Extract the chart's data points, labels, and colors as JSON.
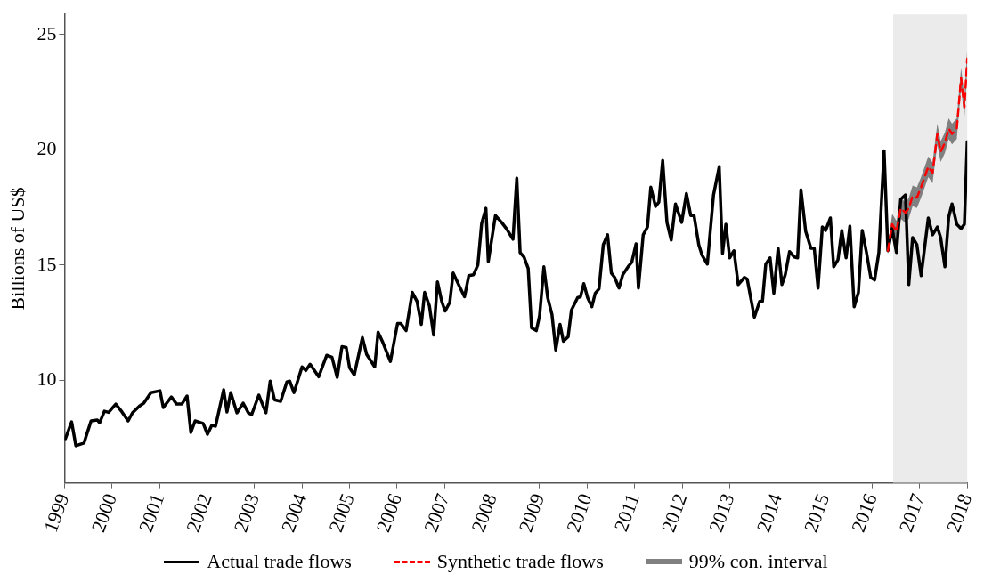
{
  "chart_data": {
    "type": "line",
    "ylabel": "Billions of US$",
    "legend": "bottom",
    "annotations": [
      "99% con. interval"
    ],
    "xlim": [
      1999,
      2018
    ],
    "xticks": [
      1999,
      2000,
      2001,
      2002,
      2003,
      2004,
      2005,
      2006,
      2007,
      2008,
      2009,
      2010,
      2011,
      2012,
      2013,
      2014,
      2015,
      2016,
      2017,
      2018
    ],
    "ylim": [
      5.54,
      25.88
    ],
    "yticks": [
      10,
      15,
      20,
      25
    ],
    "bands": [
      {
        "axis": "x",
        "from": 2016.44,
        "to": 2018,
        "color": "#ebebeb"
      }
    ],
    "x": [
      1999.02,
      1999.15,
      1999.24,
      1999.41,
      1999.56,
      1999.69,
      1999.74,
      1999.84,
      1999.93,
      2000.08,
      2000.21,
      2000.34,
      2000.43,
      2000.58,
      2000.67,
      2000.82,
      2001.01,
      2001.08,
      2001.25,
      2001.36,
      2001.47,
      2001.58,
      2001.66,
      2001.75,
      2001.92,
      2002.01,
      2002.1,
      2002.18,
      2002.35,
      2002.42,
      2002.5,
      2002.63,
      2002.76,
      2002.87,
      2002.94,
      2003.09,
      2003.24,
      2003.33,
      2003.42,
      2003.55,
      2003.68,
      2003.74,
      2003.83,
      2004.0,
      2004.08,
      2004.17,
      2004.35,
      2004.52,
      2004.63,
      2004.74,
      2004.84,
      2004.93,
      2005.0,
      2005.1,
      2005.27,
      2005.36,
      2005.53,
      2005.6,
      2005.69,
      2005.86,
      2006.01,
      2006.08,
      2006.19,
      2006.32,
      2006.42,
      2006.51,
      2006.58,
      2006.68,
      2006.77,
      2006.85,
      2006.94,
      2007.01,
      2007.11,
      2007.18,
      2007.31,
      2007.42,
      2007.51,
      2007.61,
      2007.7,
      2007.78,
      2007.87,
      2007.92,
      2008.07,
      2008.2,
      2008.3,
      2008.44,
      2008.52,
      2008.59,
      2008.67,
      2008.76,
      2008.83,
      2008.93,
      2009.0,
      2009.09,
      2009.17,
      2009.26,
      2009.34,
      2009.43,
      2009.5,
      2009.6,
      2009.67,
      2009.8,
      2009.86,
      2009.93,
      2010.01,
      2010.1,
      2010.17,
      2010.25,
      2010.34,
      2010.43,
      2010.51,
      2010.58,
      2010.67,
      2010.75,
      2010.86,
      2010.94,
      2011.03,
      2011.08,
      2011.18,
      2011.27,
      2011.34,
      2011.44,
      2011.51,
      2011.59,
      2011.68,
      2011.77,
      2011.86,
      2011.99,
      2012.09,
      2012.18,
      2012.25,
      2012.35,
      2012.42,
      2012.53,
      2012.66,
      2012.78,
      2012.85,
      2012.92,
      2013.0,
      2013.09,
      2013.18,
      2013.31,
      2013.37,
      2013.52,
      2013.63,
      2013.69,
      2013.76,
      2013.85,
      2013.93,
      2014.02,
      2014.1,
      2014.17,
      2014.26,
      2014.36,
      2014.43,
      2014.5,
      2014.6,
      2014.71,
      2014.78,
      2014.86,
      2014.95,
      2015.02,
      2015.12,
      2015.19,
      2015.28,
      2015.36,
      2015.45,
      2015.53,
      2015.62,
      2015.71,
      2015.79,
      2015.88,
      2015.97,
      2016.05,
      2016.14,
      2016.25,
      2016.33,
      2016.42,
      2016.51,
      2016.6,
      2016.7,
      2016.77,
      2016.85,
      2016.94,
      2017.03,
      2017.18,
      2017.27,
      2017.37,
      2017.44,
      2017.53,
      2017.61,
      2017.68,
      2017.78,
      2017.87,
      2017.94,
      2018.0
    ],
    "series": [
      {
        "name": "Actual trade flows",
        "color": "#000000",
        "values": [
          7.46,
          8.19,
          7.15,
          7.27,
          8.23,
          8.27,
          8.15,
          8.65,
          8.6,
          8.96,
          8.62,
          8.23,
          8.58,
          8.88,
          9.0,
          9.46,
          9.54,
          8.81,
          9.27,
          8.96,
          8.96,
          9.31,
          7.73,
          8.23,
          8.12,
          7.65,
          8.04,
          8.0,
          9.58,
          8.62,
          9.46,
          8.58,
          9.0,
          8.58,
          8.5,
          9.35,
          8.58,
          9.96,
          9.15,
          9.08,
          9.92,
          9.96,
          9.46,
          10.58,
          10.42,
          10.69,
          10.15,
          11.08,
          11.0,
          10.12,
          11.46,
          11.42,
          10.54,
          10.23,
          11.85,
          11.12,
          10.58,
          12.08,
          11.69,
          10.81,
          12.46,
          12.46,
          12.15,
          13.81,
          13.42,
          12.42,
          13.81,
          13.23,
          11.96,
          14.27,
          13.42,
          13.0,
          13.38,
          14.65,
          14.08,
          13.62,
          14.54,
          14.58,
          15.0,
          16.8,
          17.46,
          15.15,
          17.15,
          16.85,
          16.58,
          16.12,
          18.77,
          15.54,
          15.35,
          14.85,
          12.27,
          12.15,
          12.8,
          14.92,
          13.58,
          12.85,
          11.31,
          12.42,
          11.69,
          11.88,
          13.04,
          13.58,
          13.62,
          14.19,
          13.58,
          13.19,
          13.77,
          13.96,
          15.88,
          16.31,
          14.65,
          14.46,
          14.0,
          14.58,
          14.92,
          15.12,
          15.92,
          14.0,
          16.31,
          16.65,
          18.38,
          17.54,
          17.73,
          19.54,
          16.85,
          16.08,
          17.65,
          16.85,
          18.1,
          17.15,
          17.15,
          15.88,
          15.42,
          15.04,
          18.04,
          19.27,
          15.5,
          16.77,
          15.31,
          15.62,
          14.15,
          14.46,
          14.38,
          12.73,
          13.42,
          13.42,
          15.04,
          15.31,
          13.77,
          15.73,
          14.15,
          14.58,
          15.58,
          15.35,
          15.31,
          18.27,
          16.46,
          15.73,
          15.73,
          14.0,
          16.65,
          16.5,
          17.04,
          14.92,
          15.23,
          16.5,
          15.31,
          16.69,
          13.19,
          13.81,
          16.5,
          15.54,
          14.46,
          14.35,
          15.54,
          19.96,
          15.62,
          16.58,
          15.54,
          17.85,
          18.04,
          14.15,
          16.19,
          15.88,
          14.54,
          17.04,
          16.31,
          16.65,
          16.19,
          14.92,
          17.08,
          17.65,
          16.77,
          16.58,
          16.77,
          20.35
        ]
      },
      {
        "name": "Synthetic trade flows",
        "color": "#ff0000",
        "line_style": "dashed",
        "x": [
          2016.33,
          2016.42,
          2016.51,
          2016.6,
          2016.7,
          2016.77,
          2016.85,
          2016.94,
          2017.03,
          2017.18,
          2017.27,
          2017.37,
          2017.44,
          2017.53,
          2017.61,
          2017.68,
          2017.78,
          2017.87,
          2017.94,
          2018.0
        ],
        "values": [
          15.62,
          16.77,
          16.46,
          17.46,
          17.27,
          17.46,
          18.0,
          17.92,
          18.38,
          19.27,
          19.0,
          20.69,
          19.92,
          20.31,
          20.92,
          20.69,
          20.92,
          23.12,
          21.85,
          23.96
        ],
        "lower": [
          15.47,
          16.32,
          16.01,
          17.01,
          16.82,
          17.01,
          17.55,
          17.47,
          17.93,
          18.82,
          18.55,
          20.24,
          19.47,
          19.86,
          20.47,
          20.24,
          20.47,
          22.67,
          21.4,
          23.51
        ],
        "upper": [
          15.77,
          17.22,
          16.91,
          17.91,
          17.72,
          17.91,
          18.45,
          18.37,
          18.83,
          19.72,
          19.45,
          21.14,
          20.37,
          20.76,
          21.37,
          21.14,
          21.37,
          23.57,
          22.3,
          24.41
        ]
      }
    ]
  }
}
